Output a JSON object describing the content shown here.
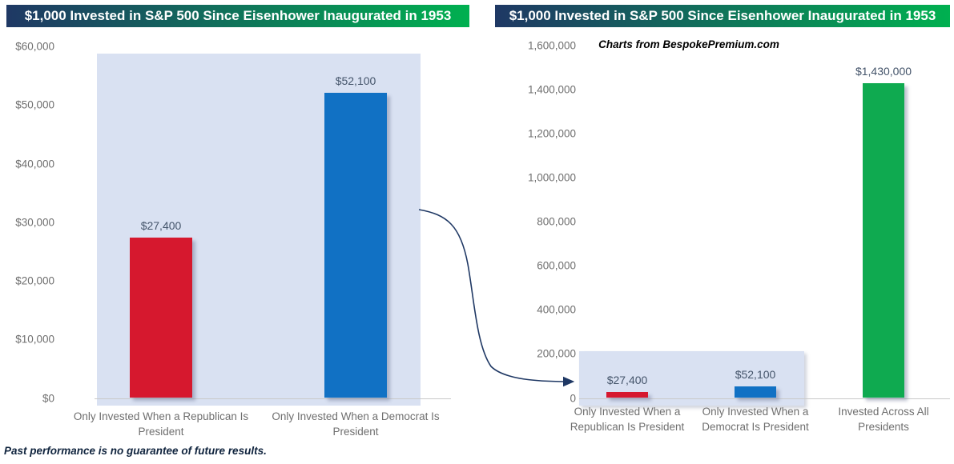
{
  "page": {
    "footer_note": "Past performance is no guarantee of future results.",
    "background": "#FFFFFF"
  },
  "colors": {
    "title_gradient_start": "#1F3864",
    "title_gradient_end": "#00B050",
    "title_text": "#FFFFFF",
    "plot_background": "#D9E1F2",
    "axis_line": "#C9C9C9",
    "tick_label": "#6F6F6F",
    "category_label": "#6F6F6F",
    "data_label": "#44546A",
    "republican_red": "#D6182E",
    "democrat_blue": "#1171C4",
    "all_presidents_green": "#0FAA50",
    "arrow": "#1F3864",
    "footer_text": "#10243E",
    "subtitle_text": "#000000"
  },
  "annotations": {
    "arrow_meaning": "callout from left chart scale to same two bars shown at the right chart's larger scale"
  },
  "chart_data": [
    {
      "type": "bar",
      "title": "$1,000 Invested in S&P 500 Since Eisenhower Inaugurated in 1953",
      "categories": [
        "Only Invested When a Republican Is President",
        "Only Invested When a Democrat Is President"
      ],
      "category_lines": [
        [
          "Only Invested When a Republican Is",
          "President"
        ],
        [
          "Only Invested When a Democrat Is",
          "President"
        ]
      ],
      "values": [
        27400,
        52100
      ],
      "data_labels": [
        "$27,400",
        "$52,100"
      ],
      "bar_colors": [
        "#D6182E",
        "#1171C4"
      ],
      "bar_names": [
        "bar-republican",
        "bar-democrat"
      ],
      "ylim": [
        0,
        60000
      ],
      "ytick_step": 10000,
      "ytick_labels": [
        "$0",
        "$10,000",
        "$20,000",
        "$30,000",
        "$40,000",
        "$50,000",
        "$60,000"
      ],
      "xlabel": "",
      "ylabel": "",
      "grid": false,
      "legend": "none",
      "plot_background": "#D9E1F2"
    },
    {
      "type": "bar",
      "title": "$1,000 Invested in S&P 500 Since Eisenhower Inaugurated in 1953",
      "subtitle": "Charts from BespokePremium.com",
      "categories": [
        "Only Invested When a Republican Is President",
        "Only Invested When a Democrat Is President",
        "Invested Across All Presidents"
      ],
      "category_lines": [
        [
          "Only Invested When a",
          "Republican Is President"
        ],
        [
          "Only Invested When a",
          "Democrat Is President"
        ],
        [
          "Invested Across All",
          "Presidents"
        ]
      ],
      "values": [
        27400,
        52100,
        1430000
      ],
      "data_labels": [
        "$27,400",
        "$52,100",
        "$1,430,000"
      ],
      "bar_colors": [
        "#D6182E",
        "#1171C4",
        "#0FAA50"
      ],
      "bar_names": [
        "bar-republican",
        "bar-democrat",
        "bar-all-presidents"
      ],
      "ylim": [
        0,
        1600000
      ],
      "ytick_step": 200000,
      "ytick_labels": [
        "0",
        "200,000",
        "400,000",
        "600,000",
        "800,000",
        "1,000,000",
        "1,200,000",
        "1,400,000",
        "1,600,000"
      ],
      "xlabel": "",
      "ylabel": "",
      "grid": false,
      "legend": "none",
      "highlight_region": {
        "categories": [
          0,
          1
        ],
        "color": "#D9E1F2"
      }
    }
  ]
}
